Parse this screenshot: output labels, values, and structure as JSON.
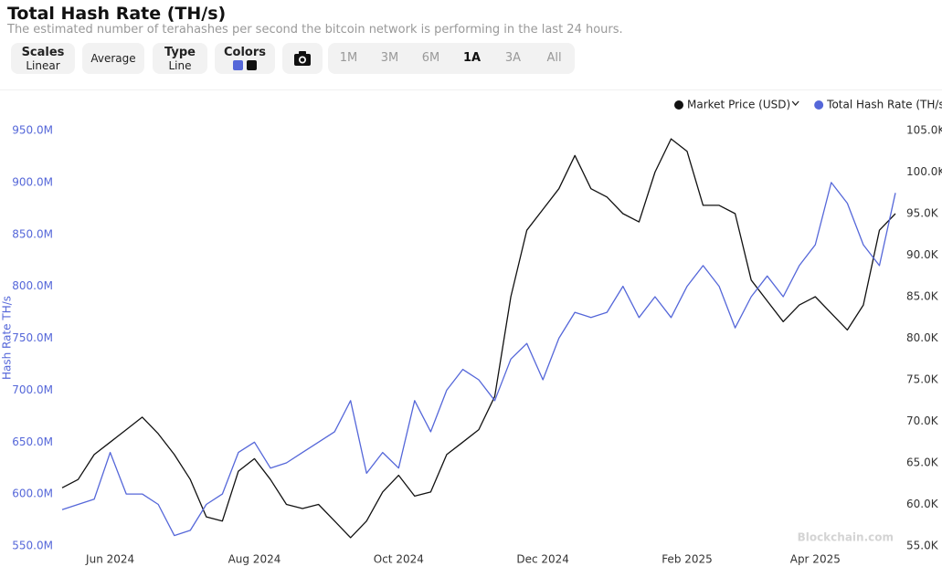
{
  "header": {
    "title": "Total Hash Rate (TH/s)",
    "subtitle": "The estimated number of terahashes per second the bitcoin network is performing in the last 24 hours."
  },
  "controls": {
    "scales": {
      "title": "Scales",
      "value": "Linear"
    },
    "average": "Average",
    "type": {
      "title": "Type",
      "value": "Line"
    },
    "colors": "Colors",
    "ranges": [
      "1M",
      "3M",
      "6M",
      "1A",
      "3A",
      "All"
    ],
    "active_range": "1A"
  },
  "watermark": "Blockchain.com",
  "chart_data": {
    "type": "line",
    "y_label": "Hash Rate TH/s",
    "categories": [
      null,
      null,
      null,
      "Jun 2024",
      null,
      null,
      null,
      null,
      null,
      null,
      null,
      null,
      "Aug 2024",
      null,
      null,
      null,
      null,
      null,
      null,
      null,
      null,
      "Oct 2024",
      null,
      null,
      null,
      null,
      null,
      null,
      null,
      null,
      "Dec 2024",
      null,
      null,
      null,
      null,
      null,
      null,
      null,
      null,
      "Feb 2025",
      null,
      null,
      null,
      null,
      null,
      null,
      null,
      "Apr 2025",
      null,
      null,
      null,
      null,
      null
    ],
    "series": [
      {
        "name": "Market Price (USD)",
        "color": "#111111",
        "axis": "y2",
        "values": [
          62,
          63,
          66,
          67.5,
          69,
          70.5,
          68.5,
          66,
          63,
          58.5,
          58,
          64,
          65.5,
          63,
          60,
          59.5,
          60,
          58,
          56,
          58,
          61.5,
          63.5,
          61,
          61.5,
          66,
          67.5,
          69,
          73,
          85,
          93,
          95.5,
          98,
          102,
          98,
          97,
          95,
          94,
          100,
          104,
          102.5,
          96,
          96,
          95,
          87,
          84.5,
          82,
          84,
          85,
          83,
          81,
          84,
          93,
          95
        ]
      },
      {
        "name": "Total Hash Rate (TH/s)",
        "color": "#5567d9",
        "values": [
          585,
          590,
          595,
          640,
          600,
          600,
          590,
          560,
          565,
          590,
          600,
          640,
          650,
          625,
          630,
          640,
          650,
          660,
          690,
          620,
          640,
          625,
          690,
          660,
          700,
          720,
          710,
          690,
          730,
          745,
          710,
          750,
          775,
          770,
          775,
          800,
          770,
          790,
          770,
          800,
          820,
          800,
          760,
          790,
          810,
          790,
          820,
          840,
          900,
          880,
          840,
          820,
          890
        ]
      }
    ],
    "ylim": [
      550,
      950
    ],
    "yticks": [
      {
        "value": 550,
        "label": "550.0M"
      },
      {
        "value": 600,
        "label": "600.0M"
      },
      {
        "value": 650,
        "label": "650.0M"
      },
      {
        "value": 700,
        "label": "700.0M"
      },
      {
        "value": 750,
        "label": "750.0M"
      },
      {
        "value": 800,
        "label": "800.0M"
      },
      {
        "value": 850,
        "label": "850.0M"
      },
      {
        "value": 900,
        "label": "900.0M"
      },
      {
        "value": 950,
        "label": "950.0M"
      }
    ],
    "y2lim": [
      55,
      105
    ],
    "y2ticks": [
      {
        "value": 55,
        "label": "55.0K"
      },
      {
        "value": 60,
        "label": "60.0K"
      },
      {
        "value": 65,
        "label": "65.0K"
      },
      {
        "value": 70,
        "label": "70.0K"
      },
      {
        "value": 75,
        "label": "75.0K"
      },
      {
        "value": 80,
        "label": "80.0K"
      },
      {
        "value": 85,
        "label": "85.0K"
      },
      {
        "value": 90,
        "label": "90.0K"
      },
      {
        "value": 95,
        "label": "95.0K"
      },
      {
        "value": 100,
        "label": "100.0K"
      },
      {
        "value": 105,
        "label": "105.0K"
      }
    ],
    "grid": false,
    "legend": "top-right"
  }
}
